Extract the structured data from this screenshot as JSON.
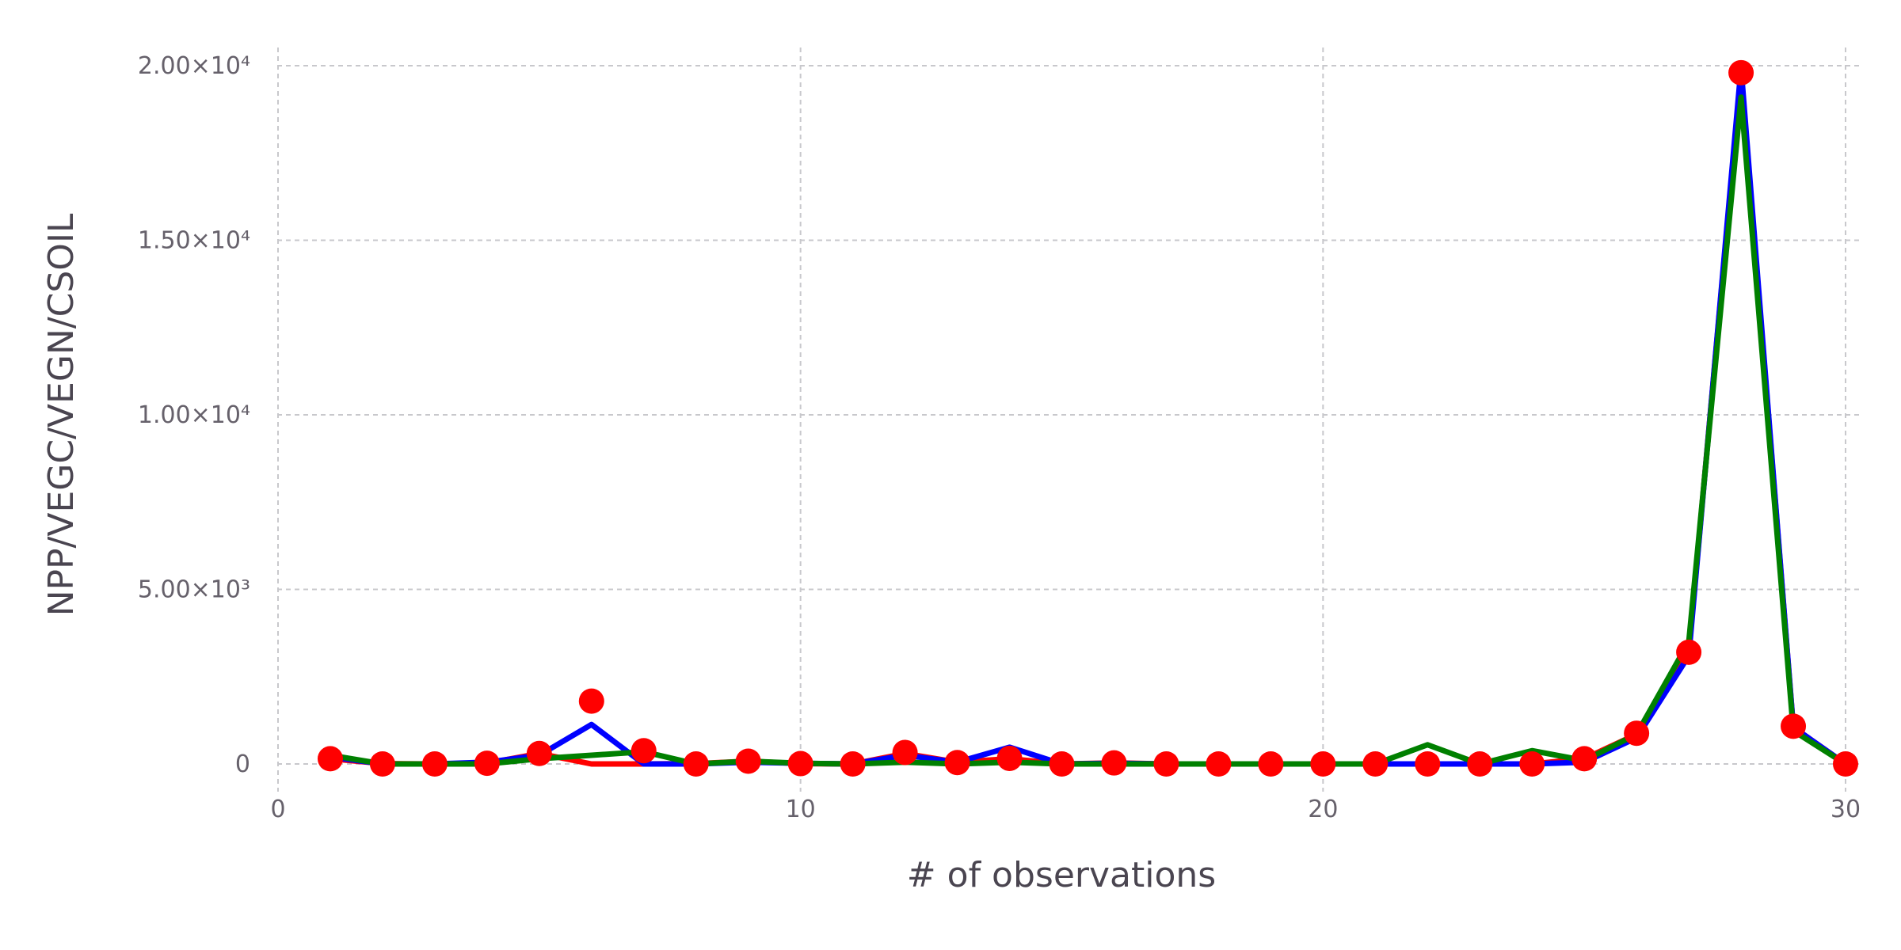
{
  "chart_data": {
    "type": "line",
    "xlabel": "# of observations",
    "ylabel": "NPP/VEGC/VEGN/CSOIL",
    "xlim": [
      0,
      30.4
    ],
    "ylim": [
      -500,
      20500
    ],
    "grid": true,
    "x_ticks": [
      {
        "value": 0,
        "label": "0"
      },
      {
        "value": 10,
        "label": "10"
      },
      {
        "value": 20,
        "label": "20"
      },
      {
        "value": 30,
        "label": "30"
      }
    ],
    "y_ticks": [
      {
        "value": 0,
        "label": "0"
      },
      {
        "value": 5000,
        "label": "5.00×10³"
      },
      {
        "value": 10000,
        "label": "1.00×10⁴"
      },
      {
        "value": 15000,
        "label": "1.50×10⁴"
      },
      {
        "value": 20000,
        "label": "2.00×10⁴"
      }
    ],
    "x": [
      1,
      2,
      3,
      4,
      5,
      6,
      7,
      8,
      9,
      10,
      11,
      12,
      13,
      14,
      15,
      16,
      17,
      18,
      19,
      20,
      21,
      22,
      23,
      24,
      25,
      26,
      27,
      28,
      29,
      30
    ],
    "series": [
      {
        "style": "line",
        "color": "#ff0000",
        "values": [
          150,
          10,
          0,
          20,
          300,
          0,
          0,
          10,
          80,
          10,
          0,
          300,
          50,
          150,
          0,
          30,
          0,
          0,
          0,
          0,
          0,
          0,
          0,
          0,
          150,
          850,
          3200,
          19800,
          1050,
          0
        ]
      },
      {
        "style": "line",
        "color": "#0000ff",
        "values": [
          200,
          0,
          0,
          50,
          250,
          1130,
          0,
          0,
          50,
          20,
          0,
          250,
          50,
          480,
          0,
          20,
          0,
          0,
          0,
          0,
          0,
          0,
          0,
          0,
          50,
          750,
          3100,
          19950,
          1050,
          0
        ]
      },
      {
        "style": "line",
        "color": "#008000",
        "values": [
          250,
          0,
          0,
          0,
          150,
          250,
          350,
          0,
          80,
          20,
          0,
          50,
          0,
          50,
          0,
          0,
          0,
          0,
          0,
          0,
          0,
          550,
          0,
          380,
          100,
          850,
          3500,
          19100,
          950,
          0
        ]
      },
      {
        "style": "points",
        "color": "#ff0000",
        "values": [
          150,
          0,
          0,
          20,
          300,
          1800,
          380,
          0,
          80,
          10,
          0,
          330,
          40,
          160,
          0,
          30,
          0,
          0,
          0,
          0,
          0,
          0,
          0,
          0,
          150,
          880,
          3200,
          19800,
          1080,
          0
        ]
      }
    ]
  }
}
